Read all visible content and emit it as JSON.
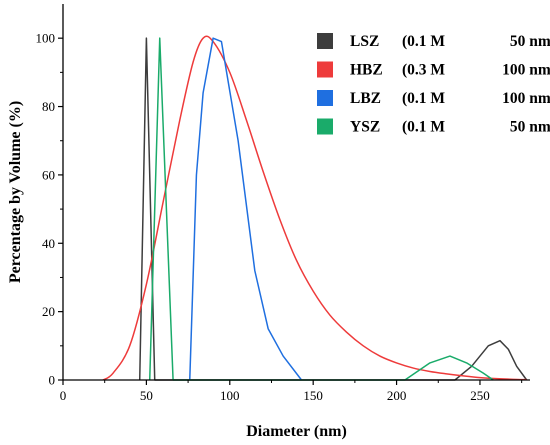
{
  "chart_data": {
    "type": "line",
    "title": "",
    "xlabel": "Diameter (nm)",
    "ylabel": "Percentage by Volume (%)",
    "xlim": [
      0,
      280
    ],
    "ylim": [
      0,
      110
    ],
    "x_ticks": [
      0,
      50,
      100,
      150,
      200,
      250
    ],
    "y_ticks": [
      0,
      20,
      40,
      60,
      80,
      100
    ],
    "grid": false,
    "legend_position": "top-right",
    "series": [
      {
        "name": "LSZ",
        "legend_parts": [
          "LSZ",
          "(0.1 M",
          "50 nm)"
        ],
        "color": "#3d3d3d",
        "smooth": false,
        "points": [
          [
            46,
            0
          ],
          [
            50,
            100
          ],
          [
            55,
            0
          ],
          [
            235,
            0
          ],
          [
            245,
            4
          ],
          [
            255,
            10
          ],
          [
            262,
            11.5
          ],
          [
            267,
            9
          ],
          [
            272,
            4
          ],
          [
            278,
            0
          ]
        ]
      },
      {
        "name": "HBZ",
        "legend_parts": [
          "HBZ",
          "(0.3 M",
          "100 nm)"
        ],
        "color": "#ee3b3b",
        "smooth": true,
        "points": [
          [
            24,
            0
          ],
          [
            30,
            2
          ],
          [
            40,
            10
          ],
          [
            50,
            28
          ],
          [
            60,
            52
          ],
          [
            70,
            76
          ],
          [
            78,
            93
          ],
          [
            84,
            100
          ],
          [
            90,
            99
          ],
          [
            100,
            90
          ],
          [
            110,
            76
          ],
          [
            120,
            61
          ],
          [
            130,
            47
          ],
          [
            140,
            35
          ],
          [
            150,
            26
          ],
          [
            160,
            19
          ],
          [
            170,
            14
          ],
          [
            180,
            10
          ],
          [
            190,
            7
          ],
          [
            200,
            5
          ],
          [
            210,
            3.5
          ],
          [
            220,
            2.5
          ],
          [
            230,
            1.8
          ],
          [
            240,
            1.2
          ],
          [
            250,
            0.7
          ],
          [
            260,
            0.4
          ],
          [
            270,
            0.2
          ],
          [
            278,
            0.1
          ]
        ]
      },
      {
        "name": "LBZ",
        "legend_parts": [
          "LBZ",
          "(0.1 M",
          "100 nm)"
        ],
        "color": "#1f6fe0",
        "smooth": false,
        "points": [
          [
            76,
            0
          ],
          [
            80,
            60
          ],
          [
            84,
            84
          ],
          [
            90,
            100
          ],
          [
            95,
            99
          ],
          [
            105,
            70
          ],
          [
            115,
            32
          ],
          [
            123,
            15
          ],
          [
            132,
            7
          ],
          [
            143,
            0
          ]
        ]
      },
      {
        "name": "YSZ",
        "legend_parts": [
          "YSZ",
          "(0.1 M",
          "50 nm)"
        ],
        "color": "#1aab6a",
        "smooth": false,
        "points": [
          [
            52,
            0
          ],
          [
            58,
            100
          ],
          [
            66,
            0
          ],
          [
            205,
            0
          ],
          [
            220,
            5
          ],
          [
            232,
            7
          ],
          [
            242,
            5
          ],
          [
            252,
            2
          ],
          [
            258,
            0
          ]
        ]
      }
    ]
  }
}
